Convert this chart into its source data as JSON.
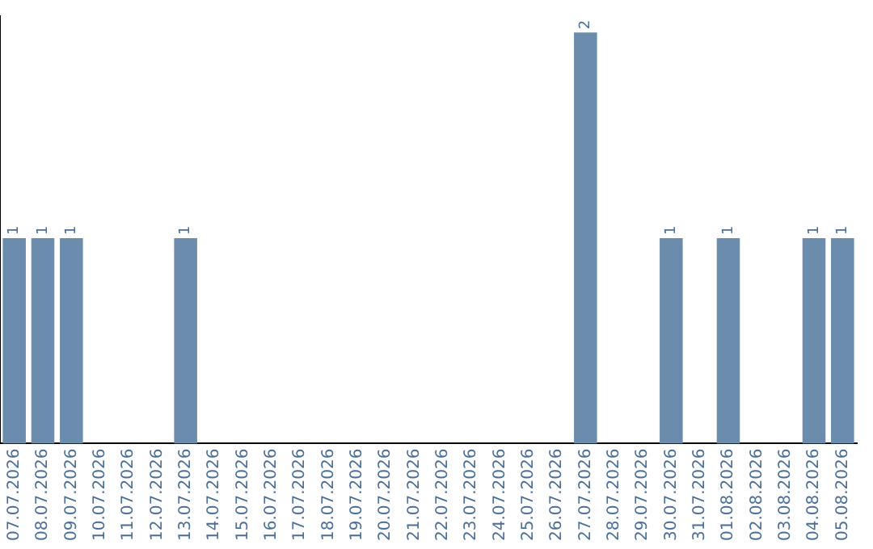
{
  "chart_data": {
    "type": "bar",
    "categories": [
      "07.07.2026",
      "08.07.2026",
      "09.07.2026",
      "10.07.2026",
      "11.07.2026",
      "12.07.2026",
      "13.07.2026",
      "14.07.2026",
      "15.07.2026",
      "16.07.2026",
      "17.07.2026",
      "18.07.2026",
      "19.07.2026",
      "20.07.2026",
      "21.07.2026",
      "22.07.2026",
      "23.07.2026",
      "24.07.2026",
      "25.07.2026",
      "26.07.2026",
      "27.07.2026",
      "28.07.2026",
      "29.07.2026",
      "30.07.2026",
      "31.07.2026",
      "01.08.2026",
      "02.08.2026",
      "03.08.2026",
      "04.08.2026",
      "05.08.2026"
    ],
    "values": [
      1,
      1,
      1,
      0,
      0,
      0,
      1,
      0,
      0,
      0,
      0,
      0,
      0,
      0,
      0,
      0,
      0,
      0,
      0,
      0,
      2,
      0,
      0,
      1,
      0,
      1,
      0,
      0,
      1,
      1
    ],
    "value_labels": [
      "1",
      "1",
      "1",
      null,
      null,
      null,
      "1",
      null,
      null,
      null,
      null,
      null,
      null,
      null,
      null,
      null,
      null,
      null,
      null,
      null,
      "2",
      null,
      null,
      "1",
      null,
      "1",
      null,
      null,
      "1",
      "1"
    ],
    "color": "#6b8cad",
    "ylim": [
      0,
      2.08
    ],
    "tick_labels": "x",
    "grid": false,
    "legend": false
  }
}
